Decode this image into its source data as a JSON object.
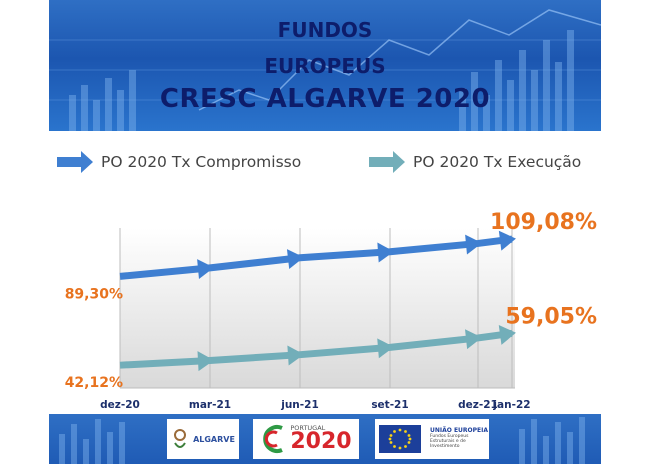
{
  "banner": {
    "line1": "FUNDOS",
    "line2": "EUROPEUS",
    "line3": "CRESC ALGARVE 2020",
    "bg_color": "#2163bd",
    "title_color": "#0d1d6b"
  },
  "legend": {
    "items": [
      {
        "label": "PO 2020 Tx Compromisso",
        "color": "#3f7fd1",
        "icon": "arrow-right-icon"
      },
      {
        "label": "PO 2020 Tx Execução",
        "color": "#72aeb9",
        "icon": "arrow-right-icon"
      }
    ]
  },
  "chart_data": {
    "type": "line",
    "categories": [
      "dez-20",
      "mar-21",
      "jun-21",
      "set-21",
      "dez-21",
      "jan-22"
    ],
    "series": [
      {
        "name": "PO 2020 Tx Compromisso",
        "values": [
          89.3,
          93.8,
          99.2,
          102.4,
          106.8,
          109.08
        ],
        "color": "#3f7fd1",
        "start_label": "89,30%",
        "end_label": "109,08%"
      },
      {
        "name": "PO 2020 Tx Execução",
        "values": [
          42.12,
          44.6,
          47.7,
          51.6,
          56.6,
          59.05
        ],
        "color": "#72aeb9",
        "start_label": "42,12%",
        "end_label": "59,05%"
      }
    ],
    "ylim": [
      30,
      115
    ],
    "grid": "vertical",
    "label_color": "#e8731f",
    "tick_color": "#1c2f6b"
  },
  "footer": {
    "logos": [
      {
        "name": "algarve-logo",
        "text": "ALGARVE"
      },
      {
        "name": "portugal-2020-logo",
        "top": "PORTUGAL",
        "big": "2020"
      },
      {
        "name": "eu-logo",
        "title": "UNIÃO EUROPEIA",
        "sub": "Fundos Europeus Estruturais e de Investimento"
      }
    ]
  }
}
